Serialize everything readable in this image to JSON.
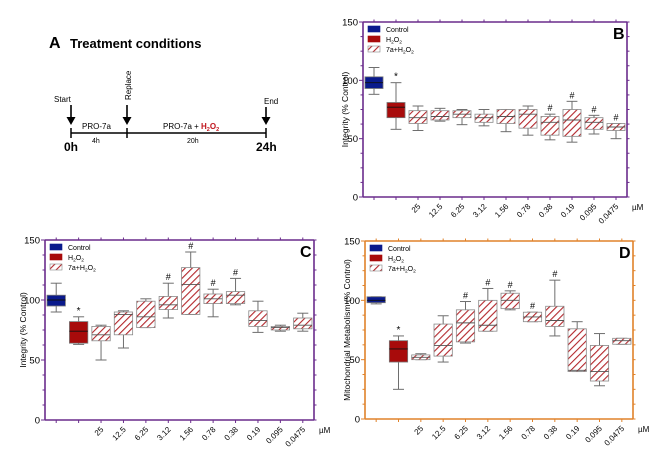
{
  "panel_a": {
    "letter": "A",
    "title": "Treatment conditions",
    "start_label": "Start",
    "replace_label": "Replace",
    "end_label": "End",
    "phase1_label": "PRO-7a",
    "phase2_prefix": "PRO-7a + ",
    "phase2_h2o2": "H",
    "phase2_sub1": "2",
    "phase2_o": "O",
    "phase2_sub2": "2",
    "phase1_duration": "4h",
    "phase2_duration": "20h",
    "t0_label": "0h",
    "t_end_label": "24h",
    "h2o2_color": "#c0141c"
  },
  "colors": {
    "control": "#0a1a8c",
    "h2o2": "#a80b0b",
    "hatch": "#b3262b",
    "whisker": "#6e6e6e",
    "axis_b": "#6a2c8c",
    "axis_c": "#6a2c8c",
    "axis_d": "#e0822a"
  },
  "chart_data": [
    {
      "id": "B",
      "type": "box",
      "panel_letter": "B",
      "ylabel": "Integrity (% Control)",
      "ylim": [
        0,
        150
      ],
      "yticks": [
        0,
        50,
        100,
        150
      ],
      "unit_label": "µM",
      "legend": [
        "Control",
        "H2O2",
        "7a+H2O2"
      ],
      "legend_position": "top-left",
      "categories": [
        "Control",
        "H2O2",
        "25",
        "12.5",
        "6.25",
        "3.12",
        "1.56",
        "0.78",
        "0.38",
        "0.19",
        "0.095",
        "0.0475"
      ],
      "tick_labels": [
        "",
        "",
        "25",
        "12.5",
        "6.25",
        "3.12",
        "1.56",
        "0.78",
        "0.38",
        "0.19",
        "0.095",
        "0.0475"
      ],
      "groups": [
        "control",
        "h2o2",
        "7a",
        "7a",
        "7a",
        "7a",
        "7a",
        "7a",
        "7a",
        "7a",
        "7a",
        "7a"
      ],
      "boxes": [
        {
          "min": 88,
          "q1": 93,
          "median": 98,
          "q3": 103,
          "max": 111,
          "mark": ""
        },
        {
          "min": 58,
          "q1": 68,
          "median": 77,
          "q3": 81,
          "max": 98,
          "mark": "*"
        },
        {
          "min": 57,
          "q1": 63,
          "median": 68,
          "q3": 74,
          "max": 78,
          "mark": ""
        },
        {
          "min": 65,
          "q1": 66,
          "median": 69,
          "q3": 74,
          "max": 76,
          "mark": ""
        },
        {
          "min": 62,
          "q1": 68,
          "median": 71,
          "q3": 74,
          "max": 75,
          "mark": ""
        },
        {
          "min": 61,
          "q1": 64,
          "median": 68,
          "q3": 71,
          "max": 75,
          "mark": ""
        },
        {
          "min": 56,
          "q1": 63,
          "median": 69,
          "q3": 75,
          "max": 75,
          "mark": ""
        },
        {
          "min": 53,
          "q1": 59,
          "median": 71,
          "q3": 75,
          "max": 78,
          "mark": ""
        },
        {
          "min": 49,
          "q1": 53,
          "median": 64,
          "q3": 69,
          "max": 71,
          "mark": "#"
        },
        {
          "min": 47,
          "q1": 52,
          "median": 66,
          "q3": 75,
          "max": 82,
          "mark": "#"
        },
        {
          "min": 54,
          "q1": 58,
          "median": 64,
          "q3": 68,
          "max": 70,
          "mark": "#"
        },
        {
          "min": 50,
          "q1": 57,
          "median": 60,
          "q3": 63,
          "max": 63,
          "mark": "#"
        }
      ]
    },
    {
      "id": "C",
      "type": "box",
      "panel_letter": "C",
      "ylabel": "Integrity (% Control)",
      "ylim": [
        0,
        150
      ],
      "yticks": [
        0,
        50,
        100,
        150
      ],
      "unit_label": "µM",
      "legend": [
        "Control",
        "H2O2",
        "7a+H2O2"
      ],
      "legend_position": "top-left",
      "categories": [
        "Control",
        "H2O2",
        "25",
        "12.5",
        "6.25",
        "3.12",
        "1.56",
        "0.78",
        "0.38",
        "0.19",
        "0.095",
        "0.0475"
      ],
      "tick_labels": [
        "",
        "",
        "25",
        "12.5",
        "6.25",
        "3.12",
        "1.56",
        "0.78",
        "0.38",
        "0.19",
        "0.095",
        "0.0475"
      ],
      "groups": [
        "control",
        "h2o2",
        "7a",
        "7a",
        "7a",
        "7a",
        "7a",
        "7a",
        "7a",
        "7a",
        "7a",
        "7a"
      ],
      "boxes": [
        {
          "min": 90,
          "q1": 95,
          "median": 100,
          "q3": 104,
          "max": 114,
          "mark": ""
        },
        {
          "min": 63,
          "q1": 64,
          "median": 74,
          "q3": 82,
          "max": 86,
          "mark": "*"
        },
        {
          "min": 50,
          "q1": 66,
          "median": 71,
          "q3": 78,
          "max": 79,
          "mark": ""
        },
        {
          "min": 60,
          "q1": 71,
          "median": 88,
          "q3": 90,
          "max": 91,
          "mark": ""
        },
        {
          "min": 77,
          "q1": 77,
          "median": 86,
          "q3": 99,
          "max": 101,
          "mark": ""
        },
        {
          "min": 85,
          "q1": 92,
          "median": 96,
          "q3": 103,
          "max": 114,
          "mark": "#"
        },
        {
          "min": 88,
          "q1": 88,
          "median": 113,
          "q3": 127,
          "max": 140,
          "mark": "#"
        },
        {
          "min": 86,
          "q1": 97,
          "median": 101,
          "q3": 105,
          "max": 109,
          "mark": "#"
        },
        {
          "min": 96,
          "q1": 97,
          "median": 104,
          "q3": 107,
          "max": 118,
          "mark": "#"
        },
        {
          "min": 73,
          "q1": 78,
          "median": 83,
          "q3": 91,
          "max": 99,
          "mark": ""
        },
        {
          "min": 74,
          "q1": 75,
          "median": 77,
          "q3": 78,
          "max": 79,
          "mark": ""
        },
        {
          "min": 74,
          "q1": 76,
          "median": 79,
          "q3": 85,
          "max": 89,
          "mark": ""
        }
      ]
    },
    {
      "id": "D",
      "type": "box",
      "panel_letter": "D",
      "ylabel": "Mitochondrial Metabolism (% Control)",
      "ylim": [
        0,
        150
      ],
      "yticks": [
        0,
        50,
        100,
        150
      ],
      "unit_label": "µM",
      "legend": [
        "Control",
        "H2O2",
        "7a+H2O2"
      ],
      "legend_position": "top-left",
      "categories": [
        "Control",
        "H2O2",
        "25",
        "12.5",
        "6.25",
        "3.12",
        "1.56",
        "0.78",
        "0.38",
        "0.19",
        "0.095",
        "0.0475"
      ],
      "tick_labels": [
        "",
        "",
        "25",
        "12.5",
        "6.25",
        "3.12",
        "1.56",
        "0.78",
        "0.38",
        "0.19",
        "0.095",
        "0.0475"
      ],
      "groups": [
        "control",
        "h2o2",
        "7a",
        "7a",
        "7a",
        "7a",
        "7a",
        "7a",
        "7a",
        "7a",
        "7a",
        "7a"
      ],
      "boxes": [
        {
          "min": 97,
          "q1": 98,
          "median": 100,
          "q3": 103,
          "max": 103,
          "mark": ""
        },
        {
          "min": 25,
          "q1": 48,
          "median": 59,
          "q3": 66,
          "max": 70,
          "mark": "*"
        },
        {
          "min": 50,
          "q1": 50,
          "median": 52,
          "q3": 54,
          "max": 55,
          "mark": ""
        },
        {
          "min": 48,
          "q1": 53,
          "median": 62,
          "q3": 80,
          "max": 87,
          "mark": ""
        },
        {
          "min": 64,
          "q1": 65,
          "median": 81,
          "q3": 92,
          "max": 99,
          "mark": "#"
        },
        {
          "min": 74,
          "q1": 74,
          "median": 79,
          "q3": 100,
          "max": 110,
          "mark": "#"
        },
        {
          "min": 92,
          "q1": 93,
          "median": 100,
          "q3": 106,
          "max": 108,
          "mark": "#"
        },
        {
          "min": 82,
          "q1": 82,
          "median": 86,
          "q3": 90,
          "max": 90,
          "mark": "#"
        },
        {
          "min": 70,
          "q1": 78,
          "median": 83,
          "q3": 95,
          "max": 117,
          "mark": "#"
        },
        {
          "min": 40,
          "q1": 40,
          "median": 41,
          "q3": 76,
          "max": 82,
          "mark": ""
        },
        {
          "min": 28,
          "q1": 32,
          "median": 40,
          "q3": 62,
          "max": 72,
          "mark": ""
        },
        {
          "min": 63,
          "q1": 63,
          "median": 66,
          "q3": 68,
          "max": 68,
          "mark": ""
        }
      ]
    }
  ]
}
